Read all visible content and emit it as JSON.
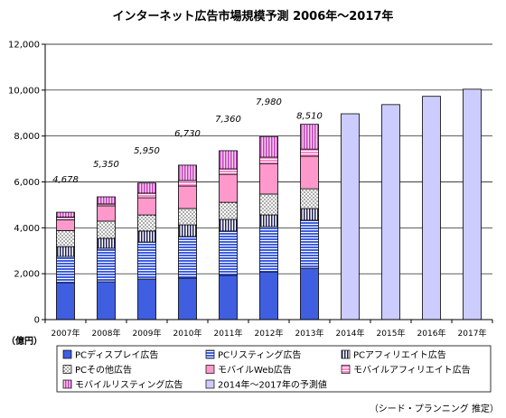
{
  "chart_data": {
    "type": "bar",
    "stacked": true,
    "title": "インターネット広告市場規模予測 2006年～2017年",
    "unit_label": "（億円）",
    "source_note": "（シード・プランニング 推定）",
    "categories": [
      "2007年",
      "2008年",
      "2009年",
      "2010年",
      "2011年",
      "2012年",
      "2013年",
      "2014年",
      "2015年",
      "2016年",
      "2017年"
    ],
    "ylim": [
      0,
      12000
    ],
    "yticks": [
      0,
      2000,
      4000,
      6000,
      8000,
      10000,
      12000
    ],
    "ytick_labels": [
      "0",
      "2,000",
      "4,000",
      "6,000",
      "8,000",
      "10,000",
      "12,000"
    ],
    "grid": true,
    "legend_position": "bottom",
    "series": [
      {
        "name": "PCディスプレイ広告",
        "color": "#3f5fe0",
        "fill_pattern": "solid",
        "values": [
          1610,
          1650,
          1770,
          1810,
          1930,
          2080,
          2240,
          null,
          null,
          null,
          null
        ]
      },
      {
        "name": "PCリスティング広告",
        "color": "#3f5fe0",
        "background": "#ffffff",
        "fill_pattern": "horizontal-lines",
        "values": [
          1140,
          1460,
          1610,
          1810,
          1930,
          1970,
          2090,
          null,
          null,
          null,
          null
        ]
      },
      {
        "name": "PCアフィリエイト広告",
        "color": "#222255",
        "background": "#ffffff",
        "fill_pattern": "vertical-lines",
        "values": [
          430,
          430,
          480,
          510,
          510,
          510,
          510,
          null,
          null,
          null,
          null
        ]
      },
      {
        "name": "PCその他広告",
        "color": "#000000",
        "background": "#ffffff",
        "fill_pattern": "dots",
        "values": [
          700,
          750,
          700,
          710,
          740,
          910,
          860,
          null,
          null,
          null,
          null
        ]
      },
      {
        "name": "モバイルWeb広告",
        "color": "#ff99cc",
        "fill_pattern": "solid",
        "values": [
          470,
          670,
          750,
          980,
          1220,
          1330,
          1420,
          null,
          null,
          null,
          null
        ]
      },
      {
        "name": "モバイルアフィリエイト広告",
        "color": "#ff88cc",
        "background": "#ffffff",
        "fill_pattern": "horizontal-lines",
        "values": [
          120,
          80,
          200,
          240,
          240,
          280,
          310,
          null,
          null,
          null,
          null
        ]
      },
      {
        "name": "モバイルリスティング広告",
        "color": "#bb44bb",
        "background": "#ffccee",
        "fill_pattern": "vertical-lines",
        "values": [
          208,
          310,
          440,
          670,
          790,
          900,
          1080,
          null,
          null,
          null,
          null
        ]
      },
      {
        "name": "2014年～2017年の予測値",
        "color": "#ccccff",
        "fill_pattern": "solid",
        "values": [
          null,
          null,
          null,
          null,
          null,
          null,
          null,
          8970,
          9370,
          9730,
          10040
        ]
      }
    ],
    "total_labels": [
      "4,678",
      "5,350",
      "5,950",
      "6,730",
      "7,360",
      "7,980",
      "8,510"
    ]
  }
}
